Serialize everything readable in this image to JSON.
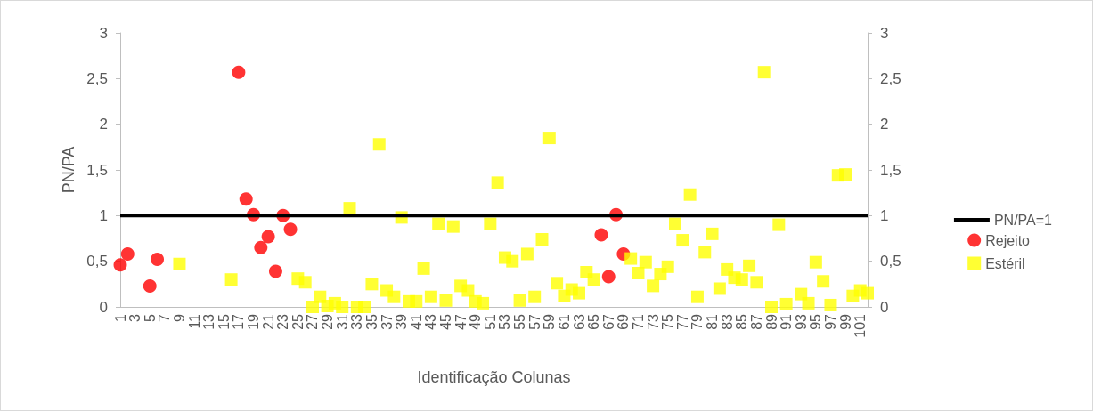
{
  "chart_data": {
    "type": "scatter",
    "xlabel": "Identificação Colunas",
    "ylabel": "PN/PA",
    "categories": [
      "1",
      null,
      "3",
      null,
      "5",
      null,
      "7",
      null,
      "9",
      null,
      "11",
      null,
      "13",
      null,
      "15",
      null,
      "17",
      null,
      "19",
      null,
      "21",
      null,
      "23",
      null,
      "25",
      null,
      "27",
      null,
      "29",
      null,
      "31",
      null,
      "33",
      null,
      "35",
      null,
      "37",
      null,
      "39",
      null,
      "41",
      null,
      "43",
      null,
      "45",
      null,
      "47",
      null,
      "49",
      null,
      "51",
      null,
      "53",
      null,
      "55",
      null,
      "57",
      null,
      "59",
      null,
      "61",
      null,
      "63",
      null,
      "65",
      null,
      "67",
      null,
      "69",
      null,
      "71",
      null,
      "73",
      null,
      "75",
      null,
      "77",
      null,
      "79",
      null,
      "81",
      null,
      "83",
      null,
      "85",
      null,
      "87",
      null,
      "89",
      null,
      "91",
      null,
      "93",
      null,
      "95",
      null,
      "97",
      null,
      "99",
      null,
      "101",
      null
    ],
    "series": [
      {
        "name": "PN/PA=1",
        "type": "line",
        "color": "#000000",
        "marker": "none",
        "line_style": "solid",
        "values": [
          1,
          1,
          1,
          1,
          1,
          1,
          1,
          1,
          1,
          1,
          1,
          1,
          1,
          1,
          1,
          1,
          1,
          1,
          1,
          1,
          1,
          1,
          1,
          1,
          1,
          1,
          1,
          1,
          1,
          1,
          1,
          1,
          1,
          1,
          1,
          1,
          1,
          1,
          1,
          1,
          1,
          1,
          1,
          1,
          1,
          1,
          1,
          1,
          1,
          1,
          1,
          1,
          1,
          1,
          1,
          1,
          1,
          1,
          1,
          1,
          1,
          1,
          1,
          1,
          1,
          1,
          1,
          1,
          1,
          1,
          1,
          1,
          1,
          1,
          1,
          1,
          1,
          1,
          1,
          1,
          1,
          1,
          1,
          1,
          1,
          1,
          1,
          1,
          1,
          1,
          1,
          1,
          1,
          1,
          1,
          1,
          1,
          1,
          1,
          1,
          1,
          1
        ]
      },
      {
        "name": "Rejeito",
        "color": "#ff0000",
        "marker": "circle",
        "values": [
          0.46,
          0.58,
          null,
          null,
          0.23,
          0.52,
          null,
          null,
          null,
          null,
          null,
          null,
          null,
          null,
          null,
          null,
          2.57,
          1.18,
          1.01,
          0.65,
          0.77,
          0.39,
          1.0,
          0.85,
          null,
          null,
          null,
          null,
          null,
          null,
          null,
          null,
          null,
          null,
          null,
          null,
          null,
          null,
          null,
          null,
          null,
          null,
          null,
          null,
          null,
          null,
          null,
          null,
          null,
          null,
          null,
          null,
          null,
          null,
          null,
          null,
          null,
          null,
          null,
          null,
          null,
          null,
          null,
          null,
          null,
          0.79,
          0.33,
          1.01,
          0.58,
          null,
          null,
          null,
          null,
          null,
          null,
          null,
          null,
          null,
          null,
          null,
          null,
          null,
          null,
          null,
          null,
          null,
          null,
          null,
          null,
          null,
          null,
          null,
          null,
          null,
          null,
          null,
          null,
          null,
          null,
          null,
          null,
          null
        ]
      },
      {
        "name": "Estéril",
        "color": "#ffff00",
        "marker": "square",
        "values": [
          null,
          null,
          null,
          null,
          null,
          null,
          null,
          null,
          0.47,
          null,
          null,
          null,
          null,
          null,
          null,
          0.3,
          null,
          null,
          null,
          null,
          null,
          null,
          null,
          null,
          0.31,
          0.27,
          0,
          0.11,
          0.01,
          0.04,
          0,
          1.08,
          0,
          0,
          0.25,
          1.78,
          0.18,
          0.11,
          0.98,
          0.06,
          0.06,
          0.42,
          0.11,
          0.91,
          0.07,
          0.88,
          0.23,
          0.18,
          0.06,
          0.04,
          0.91,
          1.36,
          0.54,
          0.5,
          0.07,
          0.58,
          0.11,
          0.74,
          1.85,
          0.26,
          0.12,
          0.19,
          0.15,
          0.38,
          0.3,
          null,
          null,
          null,
          null,
          0.53,
          0.37,
          0.49,
          0.23,
          0.36,
          0.44,
          0.91,
          0.73,
          1.23,
          0.11,
          0.6,
          0.8,
          0.2,
          0.41,
          0.32,
          0.3,
          0.45,
          0.27,
          2.57,
          0,
          0.9,
          0.03,
          null,
          0.14,
          0.04,
          0.49,
          0.28,
          0.02,
          1.44,
          1.45,
          0.12,
          0.18,
          0.15
        ]
      }
    ],
    "ylim": [
      0,
      3
    ],
    "yticks": [
      0,
      {
        "value": 0.5,
        "label": "0,5"
      },
      1,
      {
        "value": 1.5,
        "label": "1,5"
      },
      2,
      {
        "value": 2.5,
        "label": "2,5"
      },
      3
    ],
    "y2lim": [
      0,
      3
    ],
    "y2ticks": [
      0,
      {
        "value": 0.5,
        "label": "0,5"
      },
      1,
      {
        "value": 1.5,
        "label": "1,5"
      },
      2,
      {
        "value": 2.5,
        "label": "2,5"
      },
      3
    ],
    "grid": false,
    "legend": "right"
  }
}
